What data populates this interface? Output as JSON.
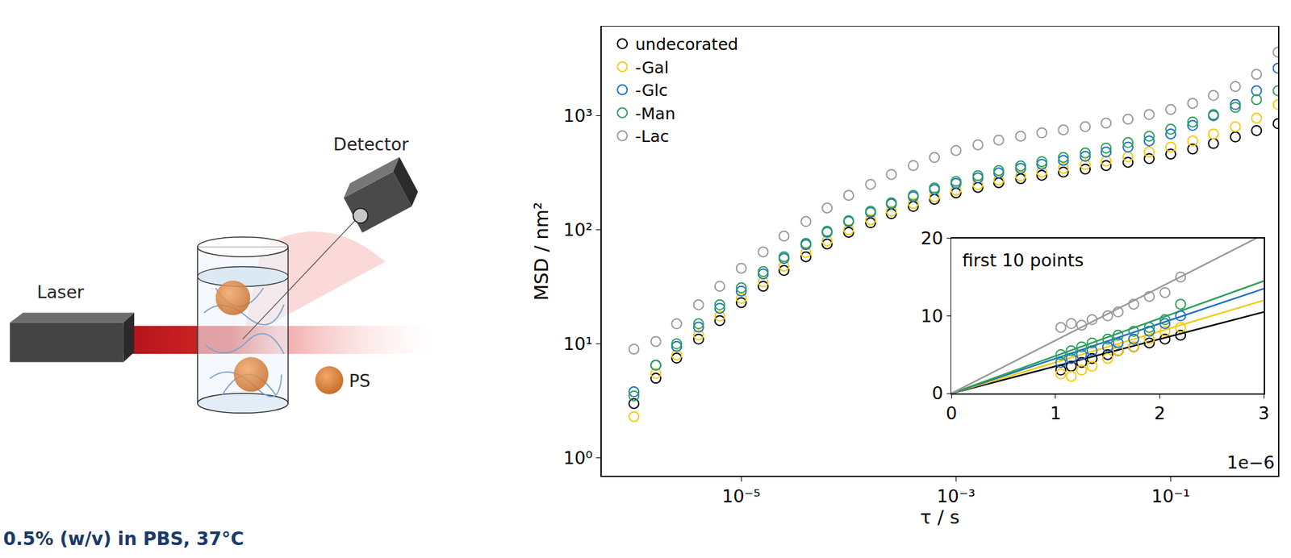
{
  "schematic": {
    "labels": {
      "laser": "Laser",
      "detector": "Detector",
      "particle": "PS"
    },
    "caption": "0.5% (w/v) in PBS, 37°C"
  },
  "chart_data": [
    {
      "type": "scatter",
      "x_label": "τ / s",
      "y_label": "MSD / nm²",
      "log": true,
      "grid": false,
      "legend": "upper left",
      "marker": "open circle",
      "xlim": [
        5e-07,
        1
      ],
      "ylim": [
        0.7,
        6000
      ],
      "xticks": [
        {
          "value": 1e-05,
          "label": "10⁻⁵"
        },
        {
          "value": 0.001,
          "label": "10⁻³"
        },
        {
          "value": 0.1,
          "label": "10⁻¹"
        }
      ],
      "yticks": [
        {
          "value": 1,
          "label": "10⁰"
        },
        {
          "value": 10,
          "label": "10¹"
        },
        {
          "value": 100,
          "label": "10²"
        },
        {
          "value": 1000,
          "label": "10³"
        }
      ],
      "x": [
        1e-06,
        1.6e-06,
        2.5e-06,
        4e-06,
        6.3e-06,
        1e-05,
        1.6e-05,
        2.5e-05,
        4e-05,
        6.3e-05,
        0.0001,
        0.00016,
        0.00025,
        0.0004,
        0.00063,
        0.001,
        0.0016,
        0.0025,
        0.004,
        0.0063,
        0.01,
        0.016,
        0.025,
        0.04,
        0.063,
        0.1,
        0.16,
        0.25,
        0.4,
        0.63,
        1
      ],
      "series": [
        {
          "name": "undecorated",
          "color": "#000000",
          "values": [
            3,
            5,
            7.5,
            11,
            16,
            23,
            32,
            44,
            58,
            75,
            95,
            115,
            138,
            160,
            185,
            210,
            235,
            258,
            280,
            300,
            320,
            340,
            365,
            390,
            420,
            460,
            510,
            570,
            650,
            740,
            850
          ]
        },
        {
          "name": "-Gal",
          "color": "#f2cc0c",
          "values": [
            2.3,
            5.5,
            8,
            12,
            17.5,
            25,
            35,
            48,
            63,
            80,
            100,
            122,
            145,
            170,
            195,
            222,
            248,
            272,
            296,
            320,
            345,
            372,
            400,
            435,
            480,
            530,
            600,
            690,
            800,
            950,
            1250
          ]
        },
        {
          "name": "-Glc",
          "color": "#1f6fc4",
          "values": [
            3.8,
            6.5,
            9.5,
            14,
            20.5,
            29,
            41,
            56,
            74,
            95,
            118,
            142,
            168,
            195,
            225,
            255,
            285,
            315,
            345,
            375,
            405,
            440,
            480,
            530,
            600,
            690,
            820,
            1000,
            1250,
            1650,
            2600
          ]
        },
        {
          "name": "-Man",
          "color": "#2ca05a",
          "values": [
            3.5,
            6.5,
            10,
            15,
            22,
            31,
            43,
            58,
            76,
            97,
            120,
            145,
            172,
            200,
            232,
            265,
            298,
            330,
            362,
            395,
            430,
            470,
            520,
            580,
            660,
            760,
            880,
            1020,
            1180,
            1380,
            1650
          ]
        },
        {
          "name": "-Lac",
          "color": "#999999",
          "values": [
            9,
            10.5,
            15,
            22,
            32,
            46,
            64,
            88,
            118,
            155,
            200,
            250,
            305,
            365,
            430,
            495,
            555,
            610,
            660,
            705,
            750,
            800,
            860,
            930,
            1020,
            1130,
            1280,
            1500,
            1800,
            2300,
            3600
          ]
        }
      ]
    },
    {
      "type": "scatter",
      "title": "first 10 points",
      "annotations": [
        "1e−6"
      ],
      "grid": false,
      "marker": "open circle",
      "xlim": [
        0,
        3
      ],
      "ylim": [
        0,
        20
      ],
      "xticks": [
        0,
        1,
        2,
        3
      ],
      "yticks": [
        0,
        10,
        20
      ],
      "x": [
        1.05,
        1.15,
        1.25,
        1.35,
        1.5,
        1.6,
        1.75,
        1.9,
        2.05,
        2.2
      ],
      "fit_x": [
        0,
        3
      ],
      "series": [
        {
          "name": "undecorated",
          "color": "#000000",
          "values": [
            3,
            3.5,
            4,
            4.5,
            5,
            5.5,
            6,
            6.5,
            7,
            7.5
          ],
          "fit_values": [
            0,
            10.5
          ]
        },
        {
          "name": "-Gal",
          "color": "#f2cc0c",
          "values": [
            2.5,
            2.2,
            3,
            3.5,
            4.5,
            5.5,
            6,
            7,
            8,
            8.5
          ],
          "fit_values": [
            0,
            12
          ]
        },
        {
          "name": "-Glc",
          "color": "#1f6fc4",
          "values": [
            4,
            4.5,
            5,
            5.5,
            6,
            6.5,
            7,
            8,
            9,
            10
          ],
          "fit_values": [
            0,
            13.5
          ]
        },
        {
          "name": "-Man",
          "color": "#2ca05a",
          "values": [
            5,
            5.5,
            6,
            6.5,
            7,
            7.5,
            8,
            8.5,
            9.5,
            11.5
          ],
          "fit_values": [
            0,
            14.5
          ]
        },
        {
          "name": "-Lac",
          "color": "#999999",
          "values": [
            8.5,
            9,
            8.8,
            9.5,
            10,
            10.5,
            11.5,
            12.5,
            13,
            15
          ],
          "fit_values": [
            0,
            20.5
          ]
        }
      ]
    }
  ]
}
